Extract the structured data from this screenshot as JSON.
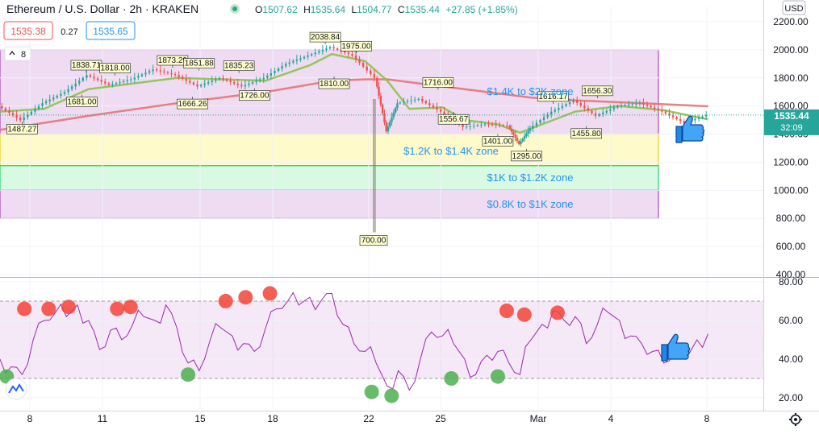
{
  "header": {
    "symbol": "Ethereum / U.S. Dollar · 2h · KRAKEN",
    "open_label": "O",
    "open": "1507.62",
    "high_label": "H",
    "high": "1535.64",
    "low_label": "L",
    "low": "1504.77",
    "close_label": "C",
    "close": "1535.44",
    "change": "+27.85 (+1.85%)",
    "bid": "1535.38",
    "spread": "0.27",
    "ask": "1535.65",
    "collapse_count": "8",
    "currency": "USD"
  },
  "price_tag": {
    "price": "1535.44",
    "countdown": "32:09"
  },
  "colors": {
    "up": "#26a69a",
    "down": "#ef5350",
    "ma": "#e57373",
    "ema": "#8bc34a",
    "rsi": "#9c27b0",
    "zone_purple": "#e1bee7",
    "zone_yellow": "#fff59d",
    "zone_green": "#b9f6ca",
    "zone_text": "#2196f3"
  },
  "chart_data": [
    {
      "type": "candlestick",
      "title": "",
      "price_axis": {
        "ticks": [
          "2200.00",
          "2000.00",
          "1800.00",
          "1600.00",
          "1400.00",
          "1200.00",
          "1000.00",
          "800.00",
          "600.00",
          "400.00"
        ],
        "range": [
          400,
          2200
        ]
      },
      "time_axis": {
        "ticks": [
          "8",
          "11",
          "15",
          "18",
          "22",
          "25",
          "Mar",
          "4",
          "8"
        ],
        "range": [
          6.5,
          41
        ]
      },
      "price_series": [
        [
          6.5,
          1600
        ],
        [
          7.5,
          1500
        ],
        [
          8.5,
          1620
        ],
        [
          9.5,
          1700
        ],
        [
          10.5,
          1820
        ],
        [
          11.5,
          1750
        ],
        [
          12.5,
          1790
        ],
        [
          13.5,
          1860
        ],
        [
          14.5,
          1820
        ],
        [
          15.5,
          1740
        ],
        [
          16.5,
          1800
        ],
        [
          17.5,
          1740
        ],
        [
          18.5,
          1800
        ],
        [
          19.5,
          1900
        ],
        [
          20.5,
          1960
        ],
        [
          21.5,
          2020
        ],
        [
          22.5,
          1960
        ],
        [
          23.5,
          1800
        ],
        [
          24,
          1420
        ],
        [
          24.5,
          1620
        ],
        [
          25.5,
          1650
        ],
        [
          26.5,
          1560
        ],
        [
          27.5,
          1450
        ],
        [
          28.5,
          1470
        ],
        [
          29.5,
          1460
        ],
        [
          30,
          1330
        ],
        [
          30.5,
          1440
        ],
        [
          31.5,
          1560
        ],
        [
          32.5,
          1640
        ],
        [
          33.5,
          1530
        ],
        [
          34.5,
          1600
        ],
        [
          35.5,
          1620
        ],
        [
          36.5,
          1560
        ],
        [
          37.5,
          1480
        ],
        [
          38.5,
          1535
        ]
      ],
      "ema_series": [
        [
          6.5,
          1560
        ],
        [
          8.5,
          1580
        ],
        [
          10.5,
          1720
        ],
        [
          12.5,
          1760
        ],
        [
          14.5,
          1800
        ],
        [
          16.5,
          1790
        ],
        [
          18.5,
          1780
        ],
        [
          20.5,
          1890
        ],
        [
          21.5,
          1970
        ],
        [
          23,
          1920
        ],
        [
          24,
          1780
        ],
        [
          25,
          1580
        ],
        [
          26.5,
          1590
        ],
        [
          27.5,
          1500
        ],
        [
          29,
          1470
        ],
        [
          30,
          1410
        ],
        [
          31.5,
          1500
        ],
        [
          32.5,
          1560
        ],
        [
          34.5,
          1600
        ],
        [
          36.5,
          1570
        ],
        [
          38.5,
          1505
        ]
      ],
      "ma_series": [
        [
          6.5,
          1430
        ],
        [
          10.5,
          1530
        ],
        [
          14.5,
          1620
        ],
        [
          18.5,
          1700
        ],
        [
          21.5,
          1780
        ],
        [
          23,
          1790
        ],
        [
          24,
          1790
        ],
        [
          26.5,
          1740
        ],
        [
          28.5,
          1700
        ],
        [
          30.5,
          1660
        ],
        [
          32.5,
          1640
        ],
        [
          35.5,
          1620
        ],
        [
          38.5,
          1598
        ]
      ],
      "wick_low": {
        "x": 24,
        "price": 700,
        "label": "700.00"
      },
      "swing_labels": [
        {
          "x": 7.5,
          "price": 1487.27,
          "label": "1487.27",
          "pos": "below"
        },
        {
          "x": 10.4,
          "price": 1838.71,
          "label": "1838.71",
          "pos": "above"
        },
        {
          "x": 11.7,
          "price": 1818.0,
          "label": "1818.00",
          "pos": "above"
        },
        {
          "x": 10.2,
          "price": 1681.0,
          "label": "1681.00",
          "pos": "below"
        },
        {
          "x": 14.3,
          "price": 1873.29,
          "label": "1873.29",
          "pos": "above"
        },
        {
          "x": 15.5,
          "price": 1851.88,
          "label": "1851.88",
          "pos": "above"
        },
        {
          "x": 15.2,
          "price": 1666.26,
          "label": "1666.26",
          "pos": "below"
        },
        {
          "x": 17.3,
          "price": 1835.23,
          "label": "1835.23",
          "pos": "above"
        },
        {
          "x": 18.0,
          "price": 1726.0,
          "label": "1726.00",
          "pos": "below"
        },
        {
          "x": 21.2,
          "price": 2038.84,
          "label": "2038.84",
          "pos": "above"
        },
        {
          "x": 22.6,
          "price": 1975.0,
          "label": "1975.00",
          "pos": "above"
        },
        {
          "x": 21.6,
          "price": 1810.0,
          "label": "1810.00",
          "pos": "below"
        },
        {
          "x": 26.3,
          "price": 1716.0,
          "label": "1716.00",
          "pos": "above"
        },
        {
          "x": 27.0,
          "price": 1556.67,
          "label": "1556.67",
          "pos": "below"
        },
        {
          "x": 29.0,
          "price": 1401.0,
          "label": "1401.00",
          "pos": "below"
        },
        {
          "x": 31.5,
          "price": 1616.17,
          "label": "1616.17",
          "pos": "above"
        },
        {
          "x": 30.3,
          "price": 1295.0,
          "label": "1295.00",
          "pos": "below"
        },
        {
          "x": 33.5,
          "price": 1656.3,
          "label": "1656.30",
          "pos": "above"
        },
        {
          "x": 33.0,
          "price": 1455.8,
          "label": "1455.80",
          "pos": "below"
        }
      ],
      "zones": [
        {
          "label": "$1.4K to $2K zone",
          "from": 1400,
          "to": 2000,
          "color": "purple"
        },
        {
          "label": "$1.2K to $1.4K zone",
          "from": 1175,
          "to": 1400,
          "color": "yellow"
        },
        {
          "label": "$1K to $1.2K zone",
          "from": 1000,
          "to": 1175,
          "color": "green"
        },
        {
          "label": "$0.8K to $1K zone",
          "from": 800,
          "to": 1000,
          "color": "purple"
        }
      ]
    },
    {
      "type": "line",
      "title": "",
      "y_axis": {
        "ticks": [
          "80.00",
          "60.00",
          "40.00",
          "20.00"
        ],
        "range": [
          15,
          82
        ]
      },
      "band": [
        30,
        70
      ],
      "rsi_series": [
        [
          6.5,
          40
        ],
        [
          7,
          36
        ],
        [
          7.5,
          32
        ],
        [
          8,
          50
        ],
        [
          8.5,
          60
        ],
        [
          9,
          64
        ],
        [
          9.5,
          62
        ],
        [
          10,
          68
        ],
        [
          10.5,
          60
        ],
        [
          11,
          45
        ],
        [
          11.5,
          55
        ],
        [
          12,
          50
        ],
        [
          12.5,
          58
        ],
        [
          13,
          62
        ],
        [
          13.5,
          60
        ],
        [
          14,
          68
        ],
        [
          14.5,
          56
        ],
        [
          15,
          38
        ],
        [
          15.5,
          34
        ],
        [
          16,
          50
        ],
        [
          16.5,
          56
        ],
        [
          17,
          52
        ],
        [
          17.5,
          48
        ],
        [
          18,
          44
        ],
        [
          18.5,
          56
        ],
        [
          19,
          66
        ],
        [
          19.5,
          70
        ],
        [
          20,
          68
        ],
        [
          20.5,
          72
        ],
        [
          21,
          70
        ],
        [
          21.5,
          74
        ],
        [
          22,
          58
        ],
        [
          22.5,
          48
        ],
        [
          23,
          44
        ],
        [
          23.5,
          38
        ],
        [
          24,
          26
        ],
        [
          24.5,
          34
        ],
        [
          25,
          24
        ],
        [
          25.5,
          40
        ],
        [
          26,
          54
        ],
        [
          26.5,
          52
        ],
        [
          27,
          48
        ],
        [
          27.5,
          40
        ],
        [
          28,
          32
        ],
        [
          28.5,
          42
        ],
        [
          29,
          44
        ],
        [
          29.5,
          38
        ],
        [
          30,
          32
        ],
        [
          30.5,
          50
        ],
        [
          31,
          58
        ],
        [
          31.5,
          65
        ],
        [
          32,
          60
        ],
        [
          32.5,
          62
        ],
        [
          33,
          48
        ],
        [
          33.5,
          58
        ],
        [
          34,
          64
        ],
        [
          34.5,
          60
        ],
        [
          35,
          52
        ],
        [
          35.5,
          48
        ],
        [
          36,
          44
        ],
        [
          36.5,
          38
        ],
        [
          37,
          44
        ],
        [
          37.5,
          40
        ],
        [
          38,
          50
        ],
        [
          38.5,
          53
        ]
      ],
      "overbought_dots": [
        [
          7.6,
          66
        ],
        [
          8.7,
          66
        ],
        [
          9.6,
          67
        ],
        [
          11.8,
          66
        ],
        [
          12.4,
          67
        ],
        [
          16.7,
          70
        ],
        [
          17.6,
          72
        ],
        [
          18.7,
          74
        ],
        [
          29.4,
          65
        ],
        [
          30.2,
          63
        ],
        [
          31.7,
          64
        ]
      ],
      "oversold_dots": [
        [
          6.8,
          31
        ],
        [
          15.0,
          32
        ],
        [
          23.3,
          23
        ],
        [
          24.2,
          21
        ],
        [
          26.9,
          30
        ],
        [
          29.0,
          31
        ]
      ]
    }
  ]
}
